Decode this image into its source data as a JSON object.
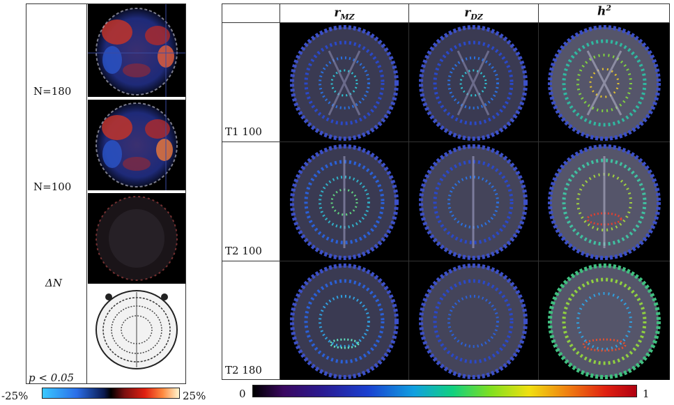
{
  "left_panel": {
    "labels": {
      "n180": "N=180",
      "n100": "N=100",
      "delta_n": "ΔN",
      "p_value": "p < 0.05"
    },
    "colorbar": {
      "min": "-25%",
      "max": "25%"
    }
  },
  "right_panel": {
    "columns": [
      {
        "var": "r",
        "sub": "MZ",
        "sup": ""
      },
      {
        "var": "r",
        "sub": "DZ",
        "sup": ""
      },
      {
        "var": "h",
        "sub": "",
        "sup": "2"
      }
    ],
    "rows": [
      "T1 100",
      "T2 100",
      "T2 180"
    ],
    "colorbar": {
      "min": "0",
      "max": "1"
    }
  }
}
